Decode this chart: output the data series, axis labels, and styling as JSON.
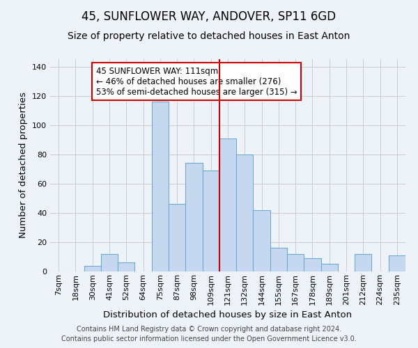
{
  "title": "45, SUNFLOWER WAY, ANDOVER, SP11 6GD",
  "subtitle": "Size of property relative to detached houses in East Anton",
  "xlabel": "Distribution of detached houses by size in East Anton",
  "ylabel": "Number of detached properties",
  "footnote1": "Contains HM Land Registry data © Crown copyright and database right 2024.",
  "footnote2": "Contains public sector information licensed under the Open Government Licence v3.0.",
  "bin_labels": [
    "7sqm",
    "18sqm",
    "30sqm",
    "41sqm",
    "52sqm",
    "64sqm",
    "75sqm",
    "87sqm",
    "98sqm",
    "109sqm",
    "121sqm",
    "132sqm",
    "144sqm",
    "155sqm",
    "167sqm",
    "178sqm",
    "189sqm",
    "201sqm",
    "212sqm",
    "224sqm",
    "235sqm"
  ],
  "bar_values": [
    0,
    0,
    4,
    12,
    6,
    0,
    116,
    46,
    74,
    69,
    91,
    80,
    42,
    16,
    12,
    9,
    5,
    0,
    12,
    0,
    11
  ],
  "bar_color": "#c5d8f0",
  "bar_edgecolor": "#6aaad4",
  "vline_x": 9.5,
  "vline_color": "#cc0000",
  "annotation_text": "45 SUNFLOWER WAY: 111sqm\n← 46% of detached houses are smaller (276)\n53% of semi-detached houses are larger (315) →",
  "annotation_box_edgecolor": "#cc0000",
  "annotation_box_facecolor": "#ffffff",
  "ylim": [
    0,
    145
  ],
  "grid_color": "#cccccc",
  "background_color": "#eef2f9",
  "title_fontsize": 12,
  "subtitle_fontsize": 10,
  "axis_label_fontsize": 9.5,
  "tick_fontsize": 8,
  "footnote_fontsize": 7,
  "annotation_fontsize": 8.5,
  "yticks": [
    0,
    20,
    40,
    60,
    80,
    100,
    120,
    140
  ]
}
